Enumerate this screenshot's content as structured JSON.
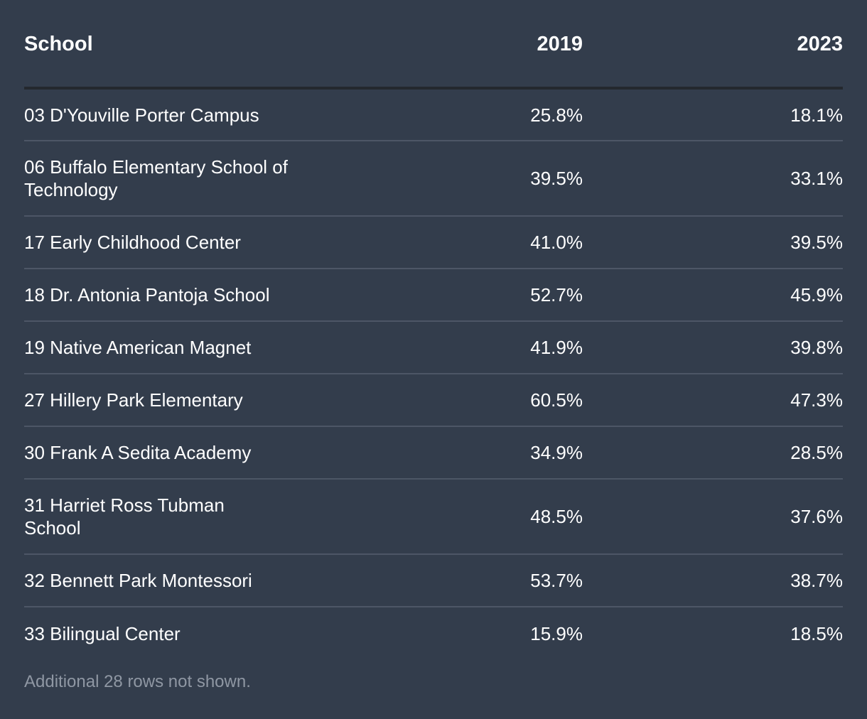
{
  "table": {
    "headers": {
      "school": "School",
      "y2019": "2019",
      "y2023": "2023"
    },
    "rows": [
      {
        "school": "03 D'Youville Porter Campus",
        "y2019": "25.8%",
        "y2023": "18.1%"
      },
      {
        "school": "06 Buffalo Elementary School of Technology",
        "y2019": "39.5%",
        "y2023": "33.1%"
      },
      {
        "school": "17 Early Childhood Center",
        "y2019": "41.0%",
        "y2023": "39.5%"
      },
      {
        "school": "18 Dr. Antonia Pantoja School",
        "y2019": "52.7%",
        "y2023": "45.9%"
      },
      {
        "school": "19 Native American Magnet",
        "y2019": "41.9%",
        "y2023": "39.8%"
      },
      {
        "school": "27 Hillery Park Elementary",
        "y2019": "60.5%",
        "y2023": "47.3%"
      },
      {
        "school": "30 Frank A Sedita Academy",
        "y2019": "34.9%",
        "y2023": "28.5%"
      },
      {
        "school": "31 Harriet Ross Tubman School",
        "y2019": "48.5%",
        "y2023": "37.6%"
      },
      {
        "school": "32 Bennett Park Montessori",
        "y2019": "53.7%",
        "y2023": "38.7%"
      },
      {
        "school": "33 Bilingual Center",
        "y2019": "15.9%",
        "y2023": "18.5%"
      }
    ]
  },
  "footnote": "Additional 28 rows not shown."
}
